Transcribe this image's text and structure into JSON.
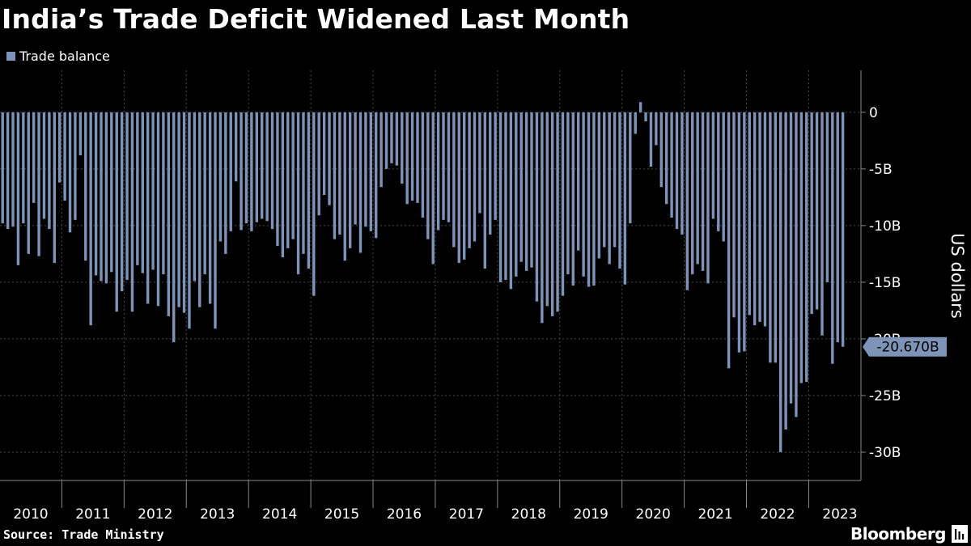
{
  "chart_data": {
    "type": "bar",
    "title": "India’s Trade Deficit Widened Last Month",
    "series": [
      {
        "name": "Trade balance",
        "unit": "billion US dollars"
      }
    ],
    "legend_label": "Trade balance",
    "ylabel": "US dollars",
    "ylim": [
      -32.5,
      3.7
    ],
    "yticks": [
      0,
      -5,
      -10,
      -15,
      -20,
      -25,
      -30
    ],
    "ytick_labels": [
      "0",
      "-5B",
      "-10B",
      "-15B",
      "-20B",
      "-25B",
      "-30B"
    ],
    "x_start": "2010-01",
    "years": [
      "2010",
      "2011",
      "2012",
      "2013",
      "2014",
      "2015",
      "2016",
      "2017",
      "2018",
      "2019",
      "2020",
      "2021",
      "2022",
      "2023"
    ],
    "values": [
      -9.8,
      -10.3,
      -10.1,
      -13.5,
      -9.8,
      -12.5,
      -8.0,
      -12.7,
      -9.4,
      -10.3,
      -13.3,
      -6.2,
      -7.8,
      -10.6,
      -9.5,
      -3.8,
      -13.1,
      -18.8,
      -14.4,
      -14.9,
      -15.1,
      -14.1,
      -17.6,
      -15.8,
      -14.8,
      -17.6,
      -13.5,
      -14.2,
      -16.9,
      -13.9,
      -17.1,
      -14.3,
      -18.0,
      -20.3,
      -17.2,
      -17.7,
      -19.1,
      -14.9,
      -17.2,
      -14.3,
      -16.9,
      -19.1,
      -11.4,
      -12.5,
      -10.5,
      -6.1,
      -10.4,
      -9.8,
      -10.5,
      -9.7,
      -9.4,
      -9.6,
      -10.3,
      -11.8,
      -12.8,
      -12.0,
      -11.2,
      -14.3,
      -12.5,
      -13.8,
      -16.2,
      -9.1,
      -7.3,
      -8.2,
      -11.2,
      -10.8,
      -13.1,
      -12.0,
      -9.9,
      -12.4,
      -10.1,
      -10.5,
      -11.1,
      -6.6,
      -5.0,
      -4.5,
      -4.7,
      -6.3,
      -8.1,
      -7.8,
      -8.0,
      -9.3,
      -11.2,
      -13.4,
      -10.4,
      -9.5,
      -9.7,
      -11.9,
      -13.3,
      -13.0,
      -12.0,
      -11.4,
      -8.9,
      -13.8,
      -10.8,
      -9.5,
      -15.0,
      -14.8,
      -15.6,
      -14.5,
      -13.2,
      -14.0,
      -13.7,
      -16.7,
      -18.6,
      -17.1,
      -18.0,
      -17.6,
      -16.2,
      -14.3,
      -15.3,
      -12.2,
      -14.5,
      -15.4,
      -15.3,
      -12.9,
      -11.9,
      -13.4,
      -11.9,
      -13.8,
      -15.2,
      -9.8,
      -1.9,
      0.9,
      -0.8,
      -4.8,
      -2.9,
      -6.6,
      -8.1,
      -9.3,
      -10.3,
      -10.8,
      -15.7,
      -14.3,
      -13.4,
      -14.0,
      -15.1,
      -9.4,
      -10.5,
      -11.4,
      -22.6,
      -18.1,
      -21.2,
      -21.1,
      -17.9,
      -18.8,
      -18.5,
      -18.9,
      -22.1,
      -22.1,
      -30.0,
      -28.0,
      -25.7,
      -26.9,
      -23.9,
      -23.8,
      -17.8,
      -17.4,
      -19.7,
      -15.0,
      -22.2,
      -20.3,
      -20.7
    ],
    "last_value_label": "-20.670B"
  },
  "legend": {
    "label": "Trade balance"
  },
  "footer": {
    "source": "Source: Trade Ministry",
    "brand": "Bloomberg"
  },
  "colors": {
    "bar": "#7d93b8",
    "grid": "#4a4a4a",
    "axis": "#8a8a8a",
    "background": "#000000",
    "callout_text": "#000000"
  }
}
